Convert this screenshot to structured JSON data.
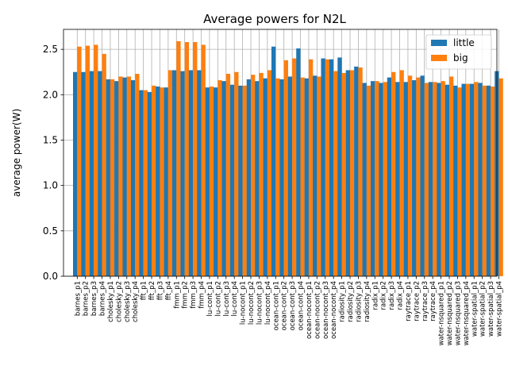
{
  "chart_data": {
    "type": "bar",
    "title": "Average powers for N2L",
    "xlabel": "",
    "ylabel": "average power(W)",
    "ylim": [
      0,
      2.72
    ],
    "yticks": [
      "0.0",
      "0.5",
      "1.0",
      "1.5",
      "2.0",
      "2.5"
    ],
    "grid": "x and y",
    "legend_position": "top-right",
    "categories": [
      "barnes_p1",
      "barnes_p2",
      "barnes_p3",
      "barnes_p4",
      "cholesky_p1",
      "cholesky_p2",
      "cholesky_p3",
      "cholesky_p4",
      "fft_p1",
      "fft_p2",
      "fft_p3",
      "fft_p4",
      "fmm_p1",
      "fmm_p2",
      "fmm_p3",
      "fmm_p4",
      "lu-cont_p1",
      "lu-cont_p2",
      "lu-cont_p3",
      "lu-cont_p4",
      "lu-nocont_p1",
      "lu-nocont_p2",
      "lu-nocont_p3",
      "lu-nocont_p4",
      "ocean-cont_p1",
      "ocean-cont_p2",
      "ocean-cont_p3",
      "ocean-cont_p4",
      "ocean-nocont_p1",
      "ocean-nocont_p2",
      "ocean-nocont_p3",
      "ocean-nocont_p4",
      "radiosity_p1",
      "radiosity_p2",
      "radiosity_p3",
      "radiosity_p4",
      "radix_p1",
      "radix_p2",
      "radix_p3",
      "radix_p4",
      "raytrace_p1",
      "raytrace_p2",
      "raytrace_p3",
      "raytrace_p4",
      "water-nsquared_p1",
      "water-nsquared_p2",
      "water-nsquared_p3",
      "water-nsquared_p4",
      "water-spatial_p1",
      "water-spatial_p2",
      "water-spatial_p3",
      "water-spatial_p4"
    ],
    "series": [
      {
        "name": "little",
        "color": "#1f77b4",
        "values": [
          2.25,
          2.25,
          2.26,
          2.26,
          2.17,
          2.15,
          2.19,
          2.16,
          2.05,
          2.03,
          2.09,
          2.08,
          2.27,
          2.26,
          2.27,
          2.27,
          2.08,
          2.08,
          2.15,
          2.11,
          2.1,
          2.17,
          2.15,
          2.18,
          2.53,
          2.17,
          2.2,
          2.51,
          2.18,
          2.21,
          2.4,
          2.39,
          2.41,
          2.27,
          2.31,
          2.13,
          2.15,
          2.13,
          2.19,
          2.14,
          2.14,
          2.16,
          2.21,
          2.14,
          2.13,
          2.11,
          2.1,
          2.12,
          2.12,
          2.13,
          2.1,
          2.26
        ]
      },
      {
        "name": "big",
        "color": "#ff7f0e",
        "values": [
          2.53,
          2.54,
          2.55,
          2.45,
          2.17,
          2.2,
          2.2,
          2.23,
          2.05,
          2.1,
          2.08,
          2.27,
          2.59,
          2.58,
          2.58,
          2.55,
          2.09,
          2.16,
          2.23,
          2.25,
          2.1,
          2.22,
          2.24,
          2.27,
          2.18,
          2.38,
          2.4,
          2.19,
          2.39,
          2.2,
          2.39,
          2.26,
          2.24,
          2.27,
          2.3,
          2.1,
          2.15,
          2.14,
          2.25,
          2.27,
          2.21,
          2.19,
          2.13,
          2.14,
          2.15,
          2.2,
          2.08,
          2.12,
          2.14,
          2.1,
          2.09,
          2.18
        ]
      }
    ]
  }
}
